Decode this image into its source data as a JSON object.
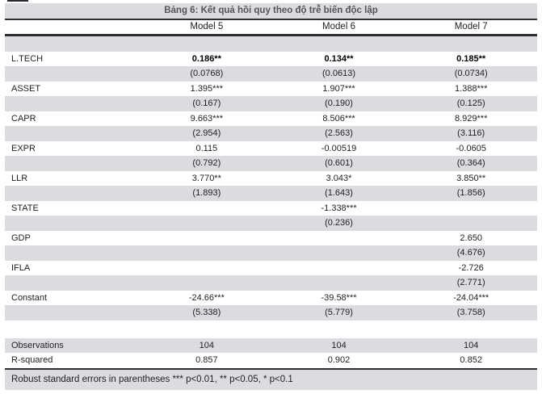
{
  "title": "Bảng 6: Kết quả hồi quy theo độ trễ biến độc lập",
  "header": {
    "columns": [
      "Model 5",
      "Model 6",
      "Model 7"
    ]
  },
  "rows": [
    {
      "label": "",
      "values": [
        "",
        "",
        ""
      ],
      "shaded": true
    },
    {
      "label": "L.TECH",
      "values": [
        "0.186**",
        "0.134**",
        "0.185**"
      ],
      "bold": true
    },
    {
      "label": "",
      "values": [
        "(0.0768)",
        "(0.0613)",
        "(0.0734)"
      ],
      "shaded": true
    },
    {
      "label": "ASSET",
      "values": [
        "1.395***",
        "1.907***",
        "1.388***"
      ]
    },
    {
      "label": "",
      "values": [
        "(0.167)",
        "(0.190)",
        "(0.125)"
      ],
      "shaded": true
    },
    {
      "label": "CAPR",
      "values": [
        "9.663***",
        "8.506***",
        "8.929***"
      ]
    },
    {
      "label": "",
      "values": [
        "(2.954)",
        "(2.563)",
        "(3.116)"
      ],
      "shaded": true
    },
    {
      "label": "EXPR",
      "values": [
        "0.115",
        "-0.00519",
        "-0.0605"
      ]
    },
    {
      "label": "",
      "values": [
        "(0.792)",
        "(0.601)",
        "(0.364)"
      ],
      "shaded": true
    },
    {
      "label": "LLR",
      "values": [
        "3.770**",
        "3.043*",
        "3.850**"
      ]
    },
    {
      "label": "",
      "values": [
        "(1.893)",
        "(1.643)",
        "(1.856)"
      ],
      "shaded": true
    },
    {
      "label": "STATE",
      "values": [
        "",
        "-1.338***",
        ""
      ]
    },
    {
      "label": "",
      "values": [
        "",
        "(0.236)",
        ""
      ],
      "shaded": true
    },
    {
      "label": "GDP",
      "values": [
        "",
        "",
        "2.650"
      ]
    },
    {
      "label": "",
      "values": [
        "",
        "",
        "(4.676)"
      ],
      "shaded": true
    },
    {
      "label": "IFLA",
      "values": [
        "",
        "",
        "-2.726"
      ]
    },
    {
      "label": "",
      "values": [
        "",
        "",
        "(2.771)"
      ],
      "shaded": true
    },
    {
      "label": "Constant",
      "values": [
        "-24.66***",
        "-39.58***",
        "-24.04***"
      ]
    },
    {
      "label": "",
      "values": [
        "(5.338)",
        "(5.779)",
        "(3.758)"
      ],
      "shaded": true
    },
    {
      "label": "",
      "values": [
        "",
        "",
        ""
      ],
      "spacer": true
    },
    {
      "label": "Observations",
      "values": [
        "104",
        "104",
        "104"
      ],
      "shaded": true
    },
    {
      "label": "R-squared",
      "values": [
        "0.857",
        "0.902",
        "0.852"
      ]
    }
  ],
  "footnote": "Robust standard errors in parentheses *** p<0.01, ** p<0.05, * p<0.1",
  "colors": {
    "band": "#dcdce0",
    "line": "#2f2f31",
    "title_text": "#545457",
    "body_text": "#1f1f21"
  }
}
